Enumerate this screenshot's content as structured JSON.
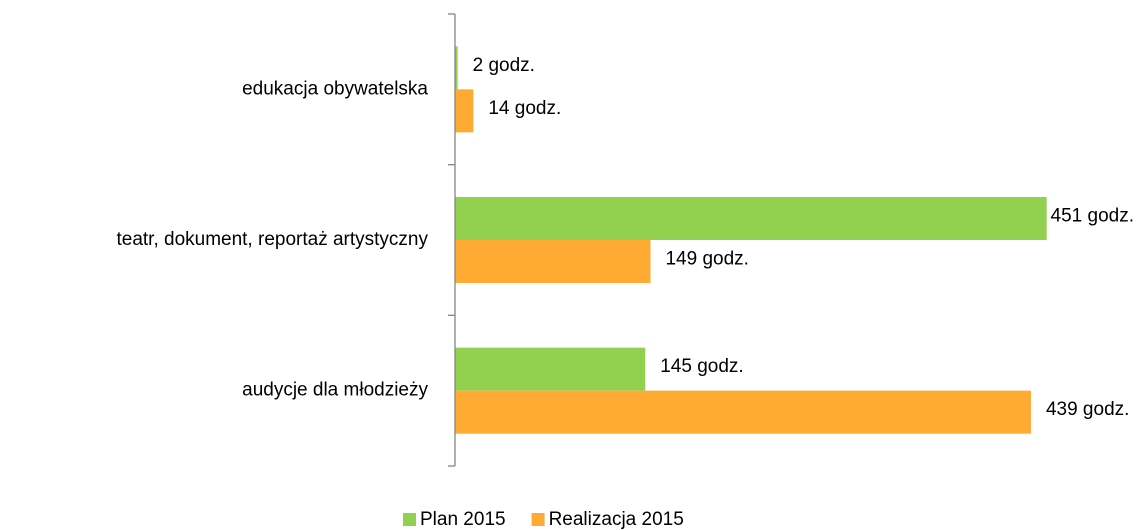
{
  "chart_data": {
    "type": "hbar",
    "categories": [
      "edukacja obywatelska",
      "teatr, dokument, reportaż artystyczny",
      "audycje dla młodzieży"
    ],
    "series": [
      {
        "name": "Plan 2015",
        "color": "#92d050",
        "values": [
          2,
          451,
          145
        ],
        "value_labels": [
          "2 godz.",
          "451 godz.",
          "145 godz."
        ]
      },
      {
        "name": "Realizacja 2015",
        "color": "#ffab33",
        "values": [
          14,
          149,
          439
        ],
        "value_labels": [
          "14 godz.",
          "149 godz.",
          "439 godz."
        ]
      }
    ],
    "xlim": [
      0,
      500
    ],
    "legend": "bottom"
  }
}
